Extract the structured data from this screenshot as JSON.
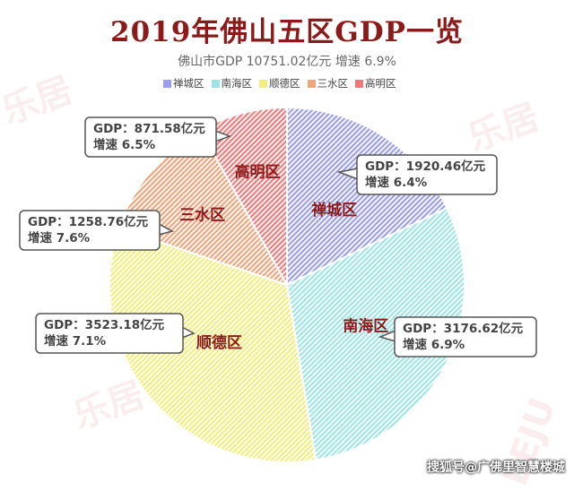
{
  "title": "2019年佛山五区GDP一览",
  "subtitle": "佛山市GDP 10751.02亿元 增速 6.9%",
  "credit": "搜狐号@广佛里智慧楼城",
  "watermarks": [
    "乐居",
    "乐居",
    "乐居",
    "LEJU"
  ],
  "chart_data": {
    "type": "pie",
    "title": "2019年佛山五区GDP一览",
    "subtitle": "佛山市GDP 10751.02亿元 增速 6.9%",
    "legend_position": "top",
    "categories": [
      "禅城区",
      "南海区",
      "顺德区",
      "三水区",
      "高明区"
    ],
    "values": [
      1920.46,
      3176.62,
      3523.18,
      1258.76,
      871.58
    ],
    "unit": "亿元",
    "growth": [
      "6.4%",
      "6.9%",
      "7.1%",
      "7.6%",
      "6.5%"
    ],
    "colors": [
      "#9b9ee8",
      "#9ee4e4",
      "#f2ee7e",
      "#eea57c",
      "#ee7a7a"
    ],
    "callouts": [
      {
        "line1": "GDP：1920.46亿元",
        "line2": "增速 6.4%"
      },
      {
        "line1": "GDP：3176.62亿元",
        "line2": "增速 6.9%"
      },
      {
        "line1": "GDP：3523.18亿元",
        "line2": "增速 7.1%"
      },
      {
        "line1": "GDP：1258.76亿元",
        "line2": "增速 7.6%"
      },
      {
        "line1": "GDP：871.58亿元",
        "line2": "增速 6.5%"
      }
    ]
  }
}
